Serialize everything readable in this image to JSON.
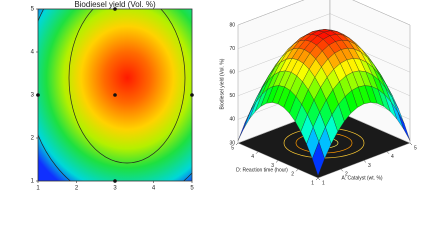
{
  "chart_data": [
    {
      "type": "contour",
      "title": "Biodiesel yield (Vol. %)",
      "xlim": [
        1,
        5
      ],
      "ylim": [
        1,
        5
      ],
      "xticks": [
        1,
        2,
        3,
        4,
        5
      ],
      "yticks": [
        1,
        2,
        3,
        4,
        5
      ],
      "x": [
        1,
        3,
        5,
        3,
        3
      ],
      "values": [
        3,
        3,
        3,
        1,
        5
      ]
    },
    {
      "type": "surface",
      "xlabel": "A: Catalyst (wt. %)",
      "ylabel": "D: Reaction time (hour)",
      "zlabel": "Biodiesel yield (Vol. %)",
      "xlim": [
        1,
        5
      ],
      "ylim": [
        1,
        5
      ],
      "zlim": [
        30,
        80
      ],
      "xticks": [
        1,
        2,
        3,
        4,
        5
      ],
      "yticks": [
        1,
        2,
        3,
        4,
        5
      ],
      "zticks": [
        30,
        40,
        50,
        60,
        70,
        80
      ]
    }
  ]
}
